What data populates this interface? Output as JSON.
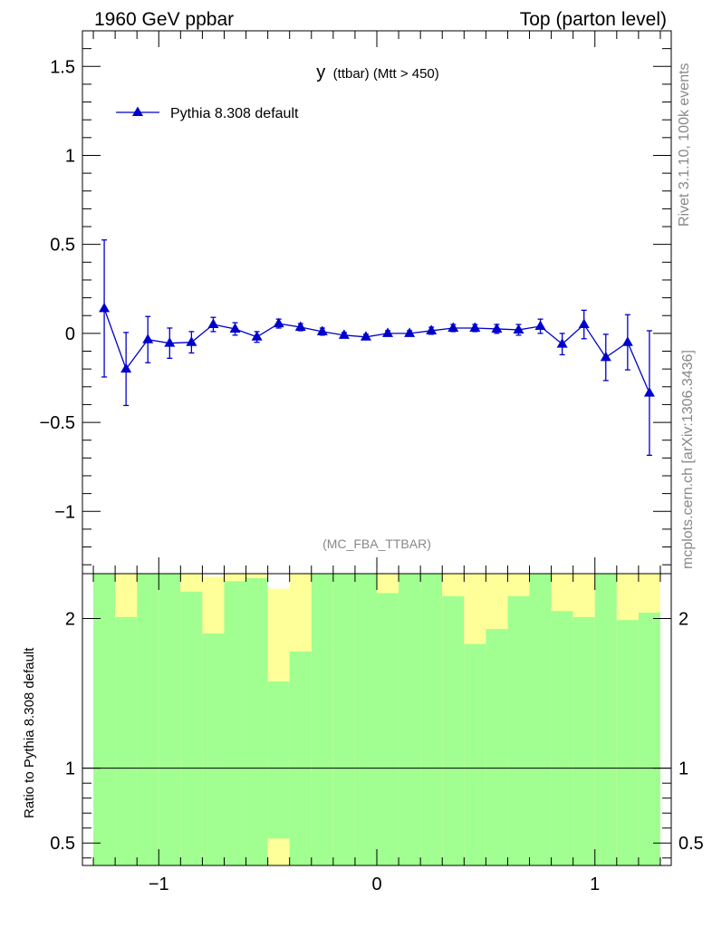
{
  "header": {
    "left_label": "1960 GeV ppbar",
    "right_label": "Top (parton level)"
  },
  "side_labels": {
    "rivet": "Rivet 3.1.10,  100k events",
    "mcplots": "mcplots.cern.ch [arXiv:1306.3436]"
  },
  "colors": {
    "series": "#0000cc",
    "band_green": "#a0ff90",
    "band_yellow": "#ffff99"
  },
  "chart_data": [
    {
      "type": "line",
      "title_main": "y",
      "title_sub": "(ttbar) (Mtt > 450)",
      "analysis_tag": "(MC_FBA_TTBAR)",
      "xlim": [
        -1.35,
        1.35
      ],
      "ylim": [
        -1.35,
        1.7
      ],
      "y_ticks": [
        -1,
        -0.5,
        0,
        0.5,
        1,
        1.5
      ],
      "y_tick_labels": [
        "−1",
        "−0.5",
        "0",
        "0.5",
        "1",
        "1.5"
      ],
      "legend": {
        "placement": "top-left",
        "entry": "Pythia 8.308 default"
      },
      "series": [
        {
          "name": "Pythia 8.308 default",
          "x": [
            -1.25,
            -1.15,
            -1.05,
            -0.95,
            -0.85,
            -0.75,
            -0.65,
            -0.55,
            -0.45,
            -0.35,
            -0.25,
            -0.15,
            -0.05,
            0.05,
            0.15,
            0.25,
            0.35,
            0.45,
            0.55,
            0.65,
            0.75,
            0.85,
            0.95,
            1.05,
            1.15,
            1.25
          ],
          "y": [
            0.14,
            -0.2,
            -0.035,
            -0.055,
            -0.05,
            0.05,
            0.025,
            -0.02,
            0.055,
            0.035,
            0.01,
            -0.01,
            -0.02,
            0.0,
            0.0,
            0.015,
            0.03,
            0.03,
            0.025,
            0.02,
            0.04,
            -0.06,
            0.05,
            -0.135,
            -0.05,
            -0.335
          ],
          "err": [
            0.385,
            0.205,
            0.13,
            0.085,
            0.06,
            0.04,
            0.035,
            0.03,
            0.025,
            0.02,
            0.02,
            0.015,
            0.015,
            0.015,
            0.015,
            0.02,
            0.02,
            0.02,
            0.025,
            0.03,
            0.04,
            0.06,
            0.08,
            0.13,
            0.155,
            0.35
          ]
        }
      ]
    },
    {
      "type": "area",
      "ylabel": "Ratio to Pythia 8.308 default",
      "xlim": [
        -1.35,
        1.35
      ],
      "ylim": [
        0.35,
        2.3
      ],
      "reference_line": 1,
      "x_ticks": [
        -1,
        0,
        1
      ],
      "x_tick_labels": [
        "−1",
        "0",
        "1"
      ],
      "y_ticks": [
        0.5,
        1,
        2
      ],
      "y_tick_labels": [
        "0.5",
        "1",
        "2"
      ],
      "bins": [
        -1.3,
        -1.2,
        -1.1,
        -1.0,
        -0.9,
        -0.8,
        -0.7,
        -0.6,
        -0.5,
        -0.4,
        -0.3,
        -0.2,
        -0.1,
        0.0,
        0.1,
        0.2,
        0.3,
        0.4,
        0.5,
        0.6,
        0.7,
        0.8,
        0.9,
        1.0,
        1.1,
        1.2,
        1.3
      ],
      "band_green_lower": [
        0.35,
        0.35,
        0.35,
        0.35,
        0.35,
        0.35,
        0.35,
        0.35,
        0.53,
        0.35,
        0.35,
        0.35,
        0.35,
        0.35,
        0.35,
        0.35,
        0.35,
        0.35,
        0.35,
        0.35,
        0.35,
        0.35,
        0.35,
        0.35,
        0.35,
        0.35
      ],
      "band_green_upper": [
        2.3,
        2.01,
        2.3,
        2.3,
        2.18,
        1.9,
        2.25,
        2.27,
        1.58,
        1.78,
        2.3,
        2.3,
        2.3,
        2.17,
        2.3,
        2.3,
        2.15,
        1.83,
        1.93,
        2.15,
        2.3,
        2.05,
        2.01,
        2.3,
        1.99,
        2.04
      ],
      "band_yellow_lower": [
        0.35,
        0.35,
        0.35,
        0.35,
        0.35,
        0.35,
        0.35,
        0.35,
        0.35,
        0.35,
        0.35,
        0.35,
        0.35,
        0.35,
        0.35,
        0.35,
        0.35,
        0.35,
        0.35,
        0.35,
        0.35,
        0.35,
        0.35,
        0.35,
        0.35,
        0.35
      ],
      "band_yellow_upper": [
        2.3,
        2.3,
        2.3,
        2.3,
        2.3,
        2.28,
        2.3,
        2.3,
        2.2,
        2.3,
        2.3,
        2.3,
        2.3,
        2.3,
        2.3,
        2.3,
        2.3,
        2.3,
        2.3,
        2.3,
        2.3,
        2.3,
        2.3,
        2.3,
        2.3,
        2.3
      ]
    }
  ]
}
